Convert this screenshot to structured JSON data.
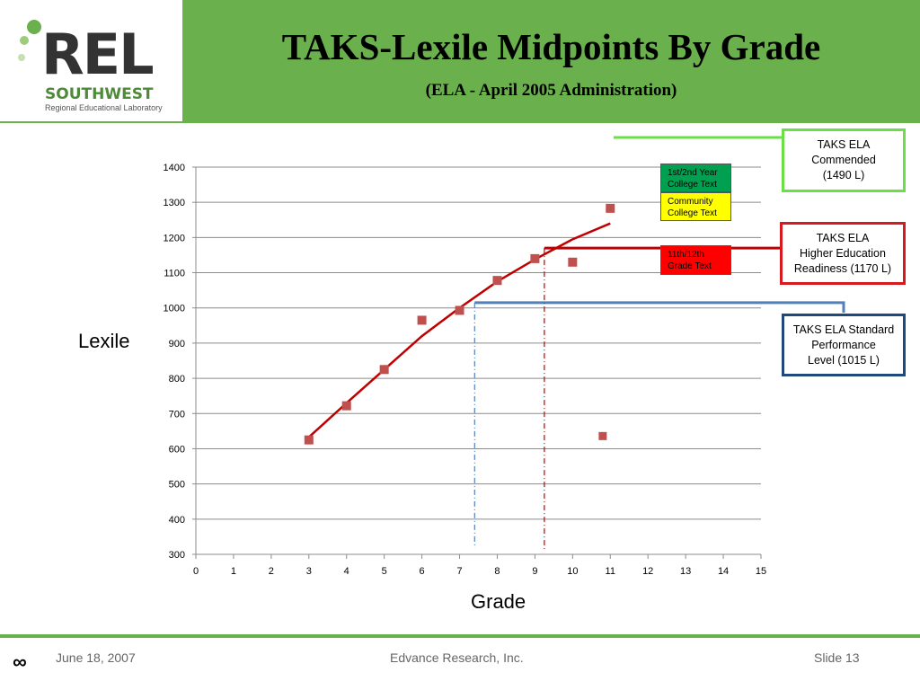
{
  "slide": {
    "title": "TAKS-Lexile Midpoints By Grade",
    "subtitle": "(ELA - April 2005 Administration)"
  },
  "logo": {
    "main": "REL",
    "region": "SOUTHWEST",
    "tagline": "Regional Educational Laboratory",
    "accent_color": "#6ab04c"
  },
  "chart_data": {
    "type": "scatter",
    "xlabel": "Grade",
    "ylabel": "Lexile",
    "xlim": [
      0,
      15
    ],
    "ylim": [
      300,
      1400
    ],
    "x_ticks": [
      0,
      1,
      2,
      3,
      4,
      5,
      6,
      7,
      8,
      9,
      10,
      11,
      12,
      13,
      14,
      15
    ],
    "y_ticks": [
      300,
      400,
      500,
      600,
      700,
      800,
      900,
      1000,
      1100,
      1200,
      1300,
      1400
    ],
    "grid": "horizontal",
    "series": [
      {
        "marker": "square",
        "color": "#c0504d",
        "points": [
          {
            "x": 3,
            "y": 625
          },
          {
            "x": 4,
            "y": 722
          },
          {
            "x": 5,
            "y": 825
          },
          {
            "x": 6,
            "y": 965
          },
          {
            "x": 7,
            "y": 993
          },
          {
            "x": 8,
            "y": 1078
          },
          {
            "x": 9,
            "y": 1140
          },
          {
            "x": 10,
            "y": 1130
          },
          {
            "x": 11,
            "y": 1283
          }
        ]
      }
    ],
    "outlier_point": {
      "x": 10.8,
      "y": 636,
      "color": "#c0504d"
    },
    "trendline": {
      "color": "#c00000",
      "points": [
        {
          "x": 3,
          "y": 633
        },
        {
          "x": 4,
          "y": 730
        },
        {
          "x": 5,
          "y": 825
        },
        {
          "x": 6,
          "y": 920
        },
        {
          "x": 7,
          "y": 1000
        },
        {
          "x": 8,
          "y": 1075
        },
        {
          "x": 9,
          "y": 1138
        },
        {
          "x": 10,
          "y": 1195
        },
        {
          "x": 11,
          "y": 1240
        }
      ]
    },
    "reference_lines": [
      {
        "name": "standard",
        "y": 1015,
        "x_cross": 7.4,
        "color": "#4f81bd"
      },
      {
        "name": "higher_ed",
        "y": 1170,
        "x_cross": 9.25,
        "color": "#c00000"
      }
    ],
    "band_labels": [
      {
        "text": "1st/2nd Year\nCollege Text",
        "bg": "#00a050",
        "fg": "#000000"
      },
      {
        "text": "Community\nCollege Text",
        "bg": "#ffff00",
        "fg": "#000000"
      },
      {
        "text": "11th/12th\nGrade Text",
        "bg": "#ff0000",
        "fg": "#000000"
      }
    ]
  },
  "callouts": [
    {
      "text": "TAKS ELA\nCommended\n(1490 L)",
      "border": "#6ae046"
    },
    {
      "text": "TAKS ELA\nHigher Education\nReadiness (1170 L)",
      "border": "#d71920"
    },
    {
      "text": "TAKS ELA Standard\nPerformance\nLevel (1015 L)",
      "border": "#1f497d"
    }
  ],
  "footer": {
    "date": "June 18, 2007",
    "org": "Edvance Research, Inc.",
    "slide": "Slide 13",
    "mark": "∞"
  }
}
